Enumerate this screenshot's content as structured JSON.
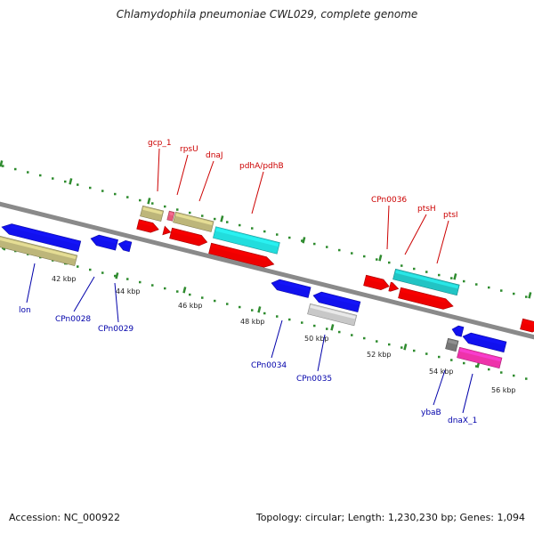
{
  "title": "Chlamydophila pneumoniae CWL029, complete genome",
  "footer": {
    "accession": "Accession: NC_000922",
    "stats": "Topology: circular; Length: 1,230,230 bp; Genes: 1,094"
  },
  "colors": {
    "backbone": "#8a8a8a",
    "tick": "#2e8b2e",
    "forward_label": "#cc0000",
    "reverse_label": "#0000aa",
    "red": "#ee0000",
    "blue": "#1111ee",
    "khaki": "#bdb67a",
    "cyan": "#22dddd",
    "teal": "#22c4c4",
    "pink": "#e85a7a",
    "silver": "#c8c8c8",
    "gray": "#777777",
    "magenta": "#ee33aa"
  },
  "kbp_labels": [
    "42 kbp",
    "44 kbp",
    "46 kbp",
    "48 kbp",
    "50 kbp",
    "52 kbp",
    "54 kbp",
    "56 kbp"
  ],
  "forward_labels": [
    "gcp_1",
    "rpsU",
    "dnaJ",
    "pdhA/pdhB",
    "CPn0036",
    "ptsH",
    "ptsI"
  ],
  "reverse_labels": [
    "lon",
    "CPn0028",
    "CPn0029",
    "CPn0034",
    "CPn0035",
    "ybaB",
    "dnaX_1"
  ]
}
